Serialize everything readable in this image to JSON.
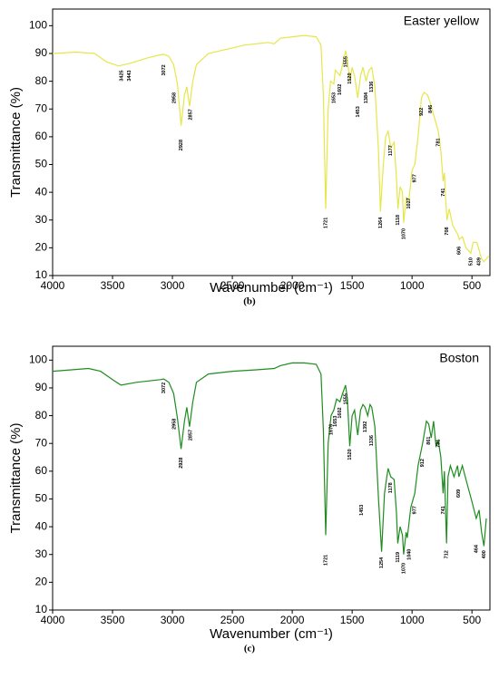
{
  "chart_data": [
    {
      "type": "line",
      "title": "Easter yellow",
      "caption": "(b)",
      "x_label": "Wavenumber (cm⁻¹)",
      "y_label": "Transmittance (%)",
      "xlim": [
        4000,
        350
      ],
      "ylim": [
        10,
        106
      ],
      "xticks": [
        4000,
        3500,
        3000,
        2500,
        2000,
        1500,
        1000,
        500
      ],
      "yticks": [
        10,
        20,
        30,
        40,
        50,
        60,
        70,
        80,
        90,
        100
      ],
      "x": [
        4000,
        3800,
        3650,
        3550,
        3450,
        3350,
        3200,
        3100,
        3072,
        3030,
        2990,
        2958,
        2928,
        2900,
        2880,
        2857,
        2830,
        2800,
        2700,
        2600,
        2500,
        2400,
        2300,
        2200,
        2150,
        2100,
        2000,
        1900,
        1800,
        1760,
        1740,
        1721,
        1700,
        1680,
        1653,
        1640,
        1602,
        1580,
        1555,
        1540,
        1520,
        1500,
        1480,
        1453,
        1430,
        1410,
        1384,
        1360,
        1336,
        1310,
        1280,
        1264,
        1240,
        1220,
        1200,
        1177,
        1150,
        1130,
        1118,
        1100,
        1080,
        1070,
        1050,
        1027,
        1000,
        977,
        950,
        922,
        900,
        870,
        846,
        820,
        781,
        760,
        741,
        730,
        720,
        708,
        690,
        660,
        620,
        606,
        580,
        550,
        510,
        490,
        460,
        439,
        420,
        400,
        380,
        360
      ],
      "series": [
        {
          "name": "Easter yellow",
          "color": "#e6e64a",
          "values": [
            90,
            90.5,
            90,
            87,
            85.5,
            86.5,
            88.5,
            89.5,
            89.7,
            89,
            86,
            79,
            64,
            75,
            78,
            71,
            80,
            86,
            90,
            91,
            92,
            93,
            93.5,
            94,
            93.5,
            95.5,
            96,
            96.5,
            96,
            93,
            75,
            34,
            70,
            80,
            79,
            84,
            82,
            86,
            91,
            88,
            80,
            85,
            82,
            74,
            82,
            85,
            80,
            84,
            85,
            78,
            55,
            33,
            50,
            60,
            62,
            56,
            58,
            45,
            34,
            42,
            40,
            29,
            38,
            37,
            48,
            50,
            60,
            74,
            76,
            75,
            72,
            68,
            62,
            55,
            44,
            47,
            38,
            30,
            34,
            28,
            25,
            23,
            24,
            20,
            18,
            22,
            22,
            19,
            16,
            15,
            16,
            17
          ]
        }
      ],
      "annotations": [
        {
          "text": "3425",
          "x": 3425,
          "y": 82
        },
        {
          "text": "3443",
          "x": 3360,
          "y": 82
        },
        {
          "text": "3072",
          "x": 3072,
          "y": 84
        },
        {
          "text": "2958",
          "x": 2985,
          "y": 74
        },
        {
          "text": "2928",
          "x": 2928,
          "y": 57
        },
        {
          "text": "2857",
          "x": 2850,
          "y": 68
        },
        {
          "text": "1721",
          "x": 1721,
          "y": 29
        },
        {
          "text": "1653",
          "x": 1653,
          "y": 74
        },
        {
          "text": "1602",
          "x": 1602,
          "y": 77
        },
        {
          "text": "1555",
          "x": 1555,
          "y": 87
        },
        {
          "text": "1520",
          "x": 1520,
          "y": 81
        },
        {
          "text": "1453",
          "x": 1453,
          "y": 69
        },
        {
          "text": "1384",
          "x": 1384,
          "y": 74
        },
        {
          "text": "1336",
          "x": 1336,
          "y": 78
        },
        {
          "text": "1264",
          "x": 1264,
          "y": 29
        },
        {
          "text": "1177",
          "x": 1177,
          "y": 55
        },
        {
          "text": "1118",
          "x": 1118,
          "y": 30
        },
        {
          "text": "1070",
          "x": 1070,
          "y": 25
        },
        {
          "text": "1027",
          "x": 1027,
          "y": 36
        },
        {
          "text": "977",
          "x": 977,
          "y": 45
        },
        {
          "text": "922",
          "x": 922,
          "y": 69
        },
        {
          "text": "846",
          "x": 846,
          "y": 70
        },
        {
          "text": "781",
          "x": 781,
          "y": 58
        },
        {
          "text": "741",
          "x": 741,
          "y": 40
        },
        {
          "text": "708",
          "x": 708,
          "y": 26
        },
        {
          "text": "606",
          "x": 606,
          "y": 19
        },
        {
          "text": "510",
          "x": 510,
          "y": 15
        },
        {
          "text": "439",
          "x": 439,
          "y": 15
        }
      ]
    },
    {
      "type": "line",
      "title": "Boston",
      "caption": "(c)",
      "x_label": "Wavenumber (cm⁻¹)",
      "y_label": "Transmittance (%)",
      "xlim": [
        4000,
        350
      ],
      "ylim": [
        10,
        105
      ],
      "xticks": [
        4000,
        3500,
        3000,
        2500,
        2000,
        1500,
        1000,
        500
      ],
      "yticks": [
        10,
        20,
        30,
        40,
        50,
        60,
        70,
        80,
        90,
        100
      ],
      "x": [
        4000,
        3700,
        3600,
        3500,
        3430,
        3300,
        3200,
        3100,
        3072,
        3030,
        2990,
        2958,
        2928,
        2900,
        2880,
        2857,
        2830,
        2800,
        2700,
        2500,
        2300,
        2150,
        2100,
        2000,
        1900,
        1800,
        1760,
        1740,
        1721,
        1700,
        1676,
        1653,
        1630,
        1602,
        1580,
        1555,
        1540,
        1520,
        1500,
        1480,
        1453,
        1430,
        1410,
        1392,
        1370,
        1350,
        1336,
        1310,
        1280,
        1254,
        1230,
        1210,
        1200,
        1178,
        1150,
        1130,
        1119,
        1100,
        1080,
        1070,
        1050,
        1040,
        1010,
        977,
        950,
        912,
        880,
        861,
        840,
        820,
        800,
        781,
        760,
        741,
        730,
        712,
        700,
        680,
        650,
        620,
        609,
        580,
        550,
        500,
        464,
        440,
        420,
        400,
        380
      ],
      "series": [
        {
          "name": "Boston",
          "color": "#1e8c1e",
          "values": [
            96,
            97,
            96,
            93,
            91,
            92,
            92.5,
            93,
            93.2,
            92,
            88,
            79,
            68,
            78,
            83,
            76,
            85,
            92,
            95,
            96,
            96.5,
            97,
            98,
            99,
            99,
            98.5,
            95,
            75,
            37,
            70,
            80,
            82,
            86,
            85,
            88,
            91,
            86,
            69,
            80,
            82,
            73,
            82,
            84,
            83,
            80,
            84,
            83,
            76,
            50,
            31,
            52,
            58,
            61,
            58,
            57,
            45,
            34,
            40,
            37,
            30,
            38,
            36,
            47,
            52,
            62,
            70,
            78,
            77,
            72,
            78,
            69,
            71,
            65,
            52,
            60,
            34,
            58,
            62,
            58,
            62,
            58,
            62,
            57,
            49,
            43,
            46,
            38,
            33,
            43
          ]
        }
      ],
      "annotations": [
        {
          "text": "3072",
          "x": 3072,
          "y": 90
        },
        {
          "text": "2958",
          "x": 2985,
          "y": 77
        },
        {
          "text": "2928",
          "x": 2928,
          "y": 63
        },
        {
          "text": "2857",
          "x": 2850,
          "y": 73
        },
        {
          "text": "1721",
          "x": 1721,
          "y": 28
        },
        {
          "text": "1676",
          "x": 1676,
          "y": 75
        },
        {
          "text": "1653",
          "x": 1640,
          "y": 78
        },
        {
          "text": "1602",
          "x": 1602,
          "y": 81
        },
        {
          "text": "1555",
          "x": 1555,
          "y": 86
        },
        {
          "text": "1520",
          "x": 1520,
          "y": 66
        },
        {
          "text": "1453",
          "x": 1420,
          "y": 46
        },
        {
          "text": "1392",
          "x": 1392,
          "y": 76
        },
        {
          "text": "1336",
          "x": 1336,
          "y": 71
        },
        {
          "text": "1254",
          "x": 1254,
          "y": 27
        },
        {
          "text": "1178",
          "x": 1178,
          "y": 54
        },
        {
          "text": "1119",
          "x": 1119,
          "y": 29
        },
        {
          "text": "1070",
          "x": 1070,
          "y": 25
        },
        {
          "text": "1040",
          "x": 1025,
          "y": 30
        },
        {
          "text": "977",
          "x": 977,
          "y": 46
        },
        {
          "text": "912",
          "x": 912,
          "y": 63
        },
        {
          "text": "861",
          "x": 861,
          "y": 71
        },
        {
          "text": "781",
          "x": 781,
          "y": 70
        },
        {
          "text": "741",
          "x": 741,
          "y": 46
        },
        {
          "text": "712",
          "x": 712,
          "y": 30
        },
        {
          "text": "609",
          "x": 609,
          "y": 52
        },
        {
          "text": "464",
          "x": 464,
          "y": 32
        },
        {
          "text": "400",
          "x": 400,
          "y": 30
        }
      ]
    }
  ]
}
